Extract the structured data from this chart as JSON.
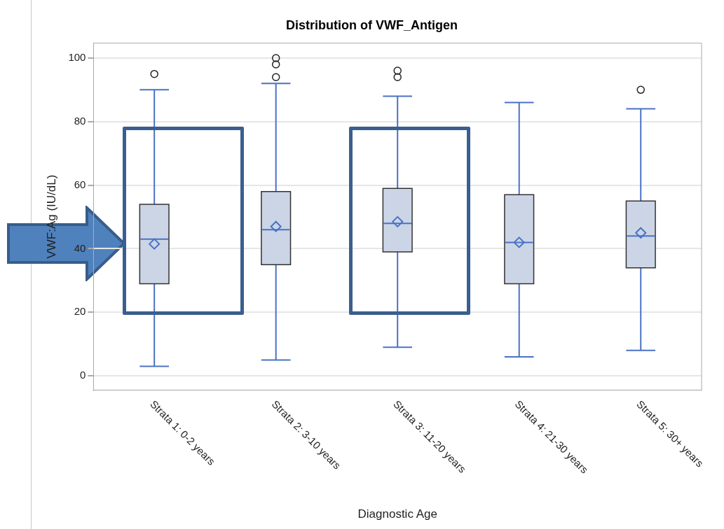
{
  "chart_data": {
    "type": "box",
    "title": "Distribution of VWF_Antigen",
    "xlabel": "Diagnostic Age",
    "ylabel": "VWF:Ag (IU/dL)",
    "categories": [
      "Strata 1: 0-2 years",
      "Strata 2: 3-10 years",
      "Strata 3: 11-20 years",
      "Strata 4: 21-30 years",
      "Strata 5: 30+ years"
    ],
    "color": "#cbd5e6",
    "boxes": [
      {
        "low": 3,
        "q1": 29,
        "median": 43,
        "q3": 54,
        "high": 90,
        "mean": 41.5,
        "outliers": [
          95
        ]
      },
      {
        "low": 5,
        "q1": 35,
        "median": 46,
        "q3": 58,
        "high": 92,
        "mean": 47,
        "outliers": [
          94,
          98,
          100
        ]
      },
      {
        "low": 9,
        "q1": 39,
        "median": 48,
        "q3": 59,
        "high": 88,
        "mean": 48.5,
        "outliers": [
          94,
          96
        ]
      },
      {
        "low": 6,
        "q1": 29,
        "median": 42,
        "q3": 57,
        "high": 86,
        "mean": 42
      },
      {
        "low": 8,
        "q1": 34,
        "median": 44,
        "q3": 55,
        "high": 84,
        "mean": 45,
        "outliers": [
          90
        ]
      }
    ],
    "ylim": [
      -4.5,
      104.7
    ],
    "yticks": [
      0,
      20,
      40,
      60,
      80,
      100
    ],
    "grid": "y",
    "legend": false
  }
}
